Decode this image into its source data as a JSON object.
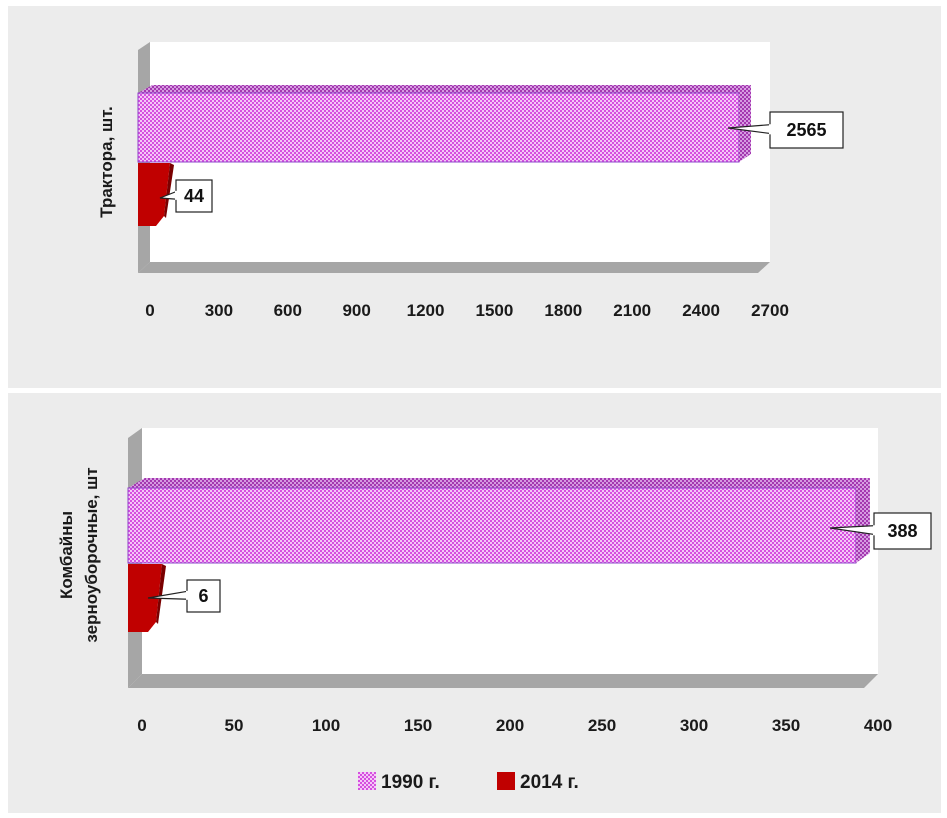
{
  "colors": {
    "series_1990": "#d64fe0",
    "series_2014": "#c00000"
  },
  "legend": [
    {
      "label": "1990 г.",
      "color": "#d64fe0",
      "pattern": "checker"
    },
    {
      "label": "2014 г.",
      "color": "#c00000",
      "pattern": "solid"
    }
  ],
  "chart_data": [
    {
      "type": "bar",
      "orientation": "horizontal",
      "style": "3d",
      "categories": [
        "Трактора, шт."
      ],
      "ylabel": "Трактора, шт.",
      "xlim": [
        0,
        2700
      ],
      "xticks": [
        "0",
        "300",
        "600",
        "900",
        "1200",
        "1500",
        "1800",
        "2100",
        "2400",
        "2700"
      ],
      "series": [
        {
          "name": "1990 г.",
          "values": [
            2565
          ],
          "labels": [
            "2565"
          ]
        },
        {
          "name": "2014 г.",
          "values": [
            44
          ],
          "labels": [
            "44"
          ]
        }
      ]
    },
    {
      "type": "bar",
      "orientation": "horizontal",
      "style": "3d",
      "categories": [
        "Комбайны зерноуборочные, шт"
      ],
      "ylabel_lines": [
        "Комбайны",
        "зерноуборочные, шт"
      ],
      "xlim": [
        0,
        400
      ],
      "xticks": [
        "0",
        "50",
        "100",
        "150",
        "200",
        "250",
        "300",
        "350",
        "400"
      ],
      "series": [
        {
          "name": "1990 г.",
          "values": [
            388
          ],
          "labels": [
            "388"
          ]
        },
        {
          "name": "2014 г.",
          "values": [
            6
          ],
          "labels": [
            "6"
          ]
        }
      ]
    }
  ]
}
